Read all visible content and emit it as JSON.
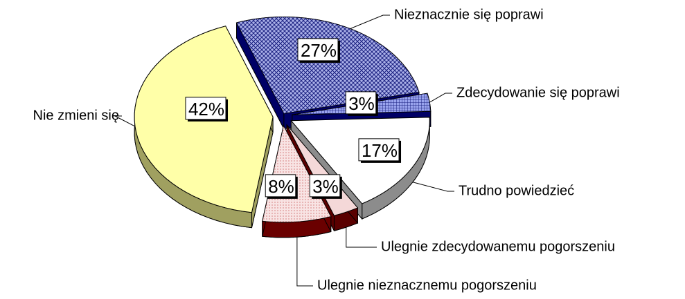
{
  "chart_data": {
    "type": "pie",
    "categories": [
      "Nieznacznie  się poprawi",
      "Zdecydowanie  się poprawi",
      "Trudno powiedzieć",
      "Ulegnie zdecydowanemu pogorszeniu",
      "Ulegnie nieznacznemu pogorszeniu",
      "Nie zmieni się"
    ],
    "values": [
      27,
      3,
      17,
      3,
      8,
      42
    ],
    "value_labels": [
      "27%",
      "3%",
      "17%",
      "3%",
      "8%",
      "42%"
    ],
    "colors": [
      "#aab0e8",
      "#9aa4ee",
      "#ffffff",
      "#f4d8d8",
      "#f8e4e4",
      "#ffffa8"
    ],
    "side_colors": [
      "#000066",
      "#000066",
      "#8c8c8c",
      "#5a0000",
      "#6a0000",
      "#a0a060"
    ]
  }
}
